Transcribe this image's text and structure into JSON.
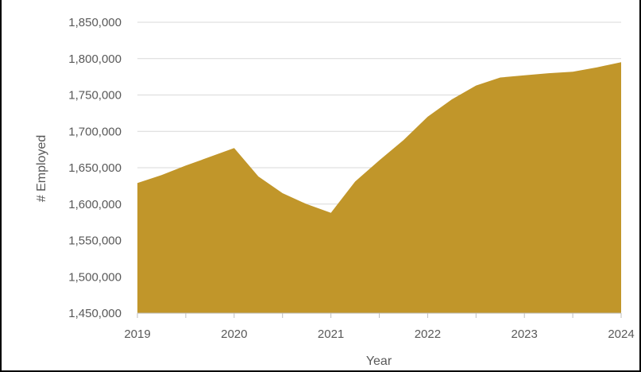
{
  "chart_data": {
    "type": "area",
    "title": "",
    "xlabel": "Year",
    "ylabel": "# Employed",
    "xlim": [
      2019,
      2024
    ],
    "ylim": [
      1450000,
      1850000
    ],
    "x_ticks": [
      2019,
      2020,
      2021,
      2022,
      2023,
      2024
    ],
    "x_tick_labels": [
      "2019",
      "2020",
      "2021",
      "2022",
      "2023",
      "2024"
    ],
    "y_ticks": [
      1450000,
      1500000,
      1550000,
      1600000,
      1650000,
      1700000,
      1750000,
      1800000,
      1850000
    ],
    "y_tick_labels": [
      "1,450,000",
      "1,500,000",
      "1,550,000",
      "1,600,000",
      "1,650,000",
      "1,700,000",
      "1,750,000",
      "1,800,000",
      "1,850,000"
    ],
    "grid": true,
    "legend": "none",
    "fill_color": "#C1962A",
    "series": [
      {
        "x": [
          2019.0,
          2019.25,
          2019.5,
          2019.75,
          2020.0,
          2020.25,
          2020.5,
          2020.75,
          2021.0,
          2021.25,
          2021.5,
          2021.75,
          2022.0,
          2022.25,
          2022.5,
          2022.75,
          2023.0,
          2023.25,
          2023.5,
          2023.75,
          2024.0
        ],
        "values": [
          1629000,
          1640000,
          1653000,
          1665000,
          1677000,
          1638000,
          1615000,
          1600000,
          1588000,
          1631000,
          1660000,
          1688000,
          1720000,
          1744000,
          1763000,
          1774000,
          1777000,
          1780000,
          1782000,
          1788000,
          1795000
        ]
      }
    ]
  }
}
